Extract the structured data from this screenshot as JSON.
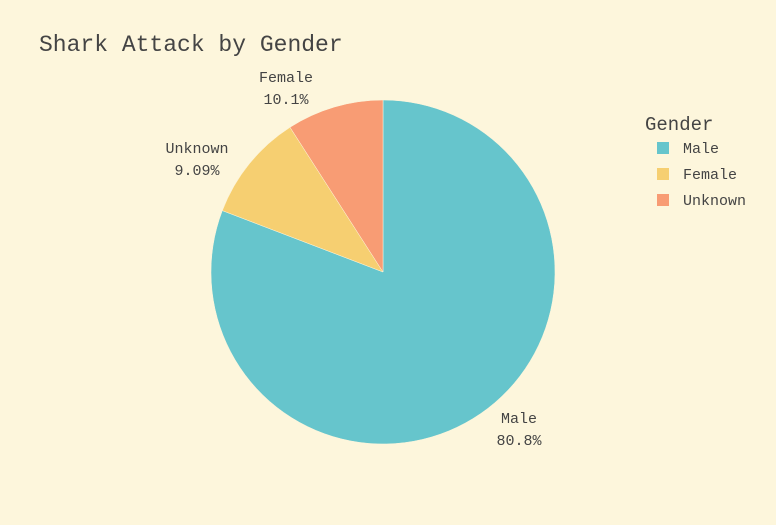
{
  "chart_data": {
    "type": "pie",
    "title": "Shark Attack by Gender",
    "legend_title": "Gender",
    "legend_position": "right",
    "slices": [
      {
        "label": "Male",
        "value": 80.8,
        "percent_text": "80.8%",
        "color": "#66c5cc"
      },
      {
        "label": "Female",
        "value": 10.1,
        "percent_text": "10.1%",
        "color": "#f6cf71"
      },
      {
        "label": "Unknown",
        "value": 9.09,
        "percent_text": "9.09%",
        "color": "#f89c74"
      }
    ]
  }
}
